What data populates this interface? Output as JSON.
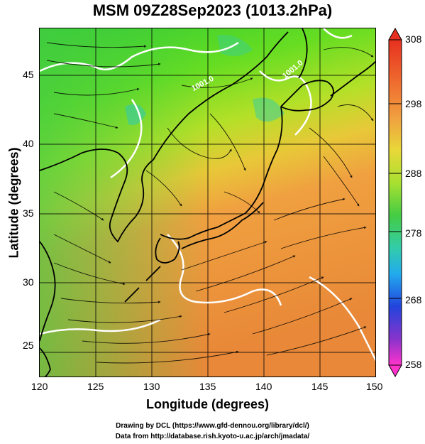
{
  "title": "MSM 09Z28Sep2023 (1013.2hPa)",
  "xlabel": "Longitude (degrees)",
  "ylabel": "Latitude  (degrees)",
  "x_ticks": [
    "120",
    "125",
    "130",
    "135",
    "140",
    "145",
    "150"
  ],
  "y_ticks": [
    "45",
    "40",
    "35",
    "30",
    "25"
  ],
  "colorbar_ticks": [
    "308",
    "298",
    "288",
    "278",
    "268",
    "258"
  ],
  "contour_labels": [
    "1001.0",
    "1001.0"
  ],
  "credit_line1": "Drawing by DCL (https://www.gfd-dennou.org/library/dcl/)",
  "credit_line2": "Data from http://database.rish.kyoto-u.ac.jp/arch/jmadata/",
  "colors": {
    "land_outline": "#000000",
    "contour": "#ffffff",
    "gradient_low": "#ff33cc",
    "gradient_high": "#e63020"
  }
}
